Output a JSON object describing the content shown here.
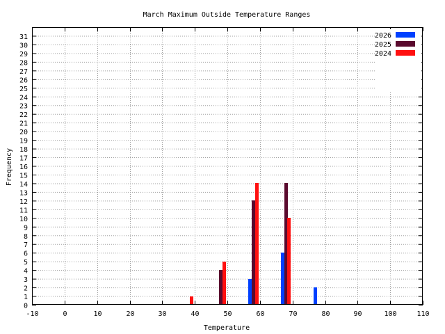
{
  "chart_data": {
    "type": "bar",
    "title": "March Maximum Outside Temperature Ranges",
    "xlabel": "Temperature",
    "ylabel": "Frequency",
    "xlim": [
      -10,
      110
    ],
    "ylim": [
      0,
      32
    ],
    "x_ticks": [
      -10,
      0,
      10,
      20,
      30,
      40,
      50,
      60,
      70,
      80,
      90,
      100,
      110
    ],
    "y_ticks": [
      0,
      1,
      2,
      3,
      4,
      5,
      6,
      7,
      8,
      9,
      10,
      11,
      12,
      13,
      14,
      15,
      16,
      17,
      18,
      19,
      20,
      21,
      22,
      23,
      24,
      25,
      26,
      27,
      28,
      29,
      30,
      31
    ],
    "grid": true,
    "legend_position": "top-right",
    "series": [
      {
        "name": "2026",
        "color": "#0040ff",
        "points": [
          {
            "x": 57,
            "y": 3
          },
          {
            "x": 67,
            "y": 6
          },
          {
            "x": 77,
            "y": 2
          }
        ]
      },
      {
        "name": "2025",
        "color": "#5a0a2e",
        "points": [
          {
            "x": 48,
            "y": 4
          },
          {
            "x": 58,
            "y": 12
          },
          {
            "x": 68,
            "y": 14
          }
        ]
      },
      {
        "name": "2024",
        "color": "#ff1010",
        "points": [
          {
            "x": 39,
            "y": 1
          },
          {
            "x": 49,
            "y": 5
          },
          {
            "x": 59,
            "y": 14
          },
          {
            "x": 69,
            "y": 10
          }
        ]
      }
    ]
  }
}
